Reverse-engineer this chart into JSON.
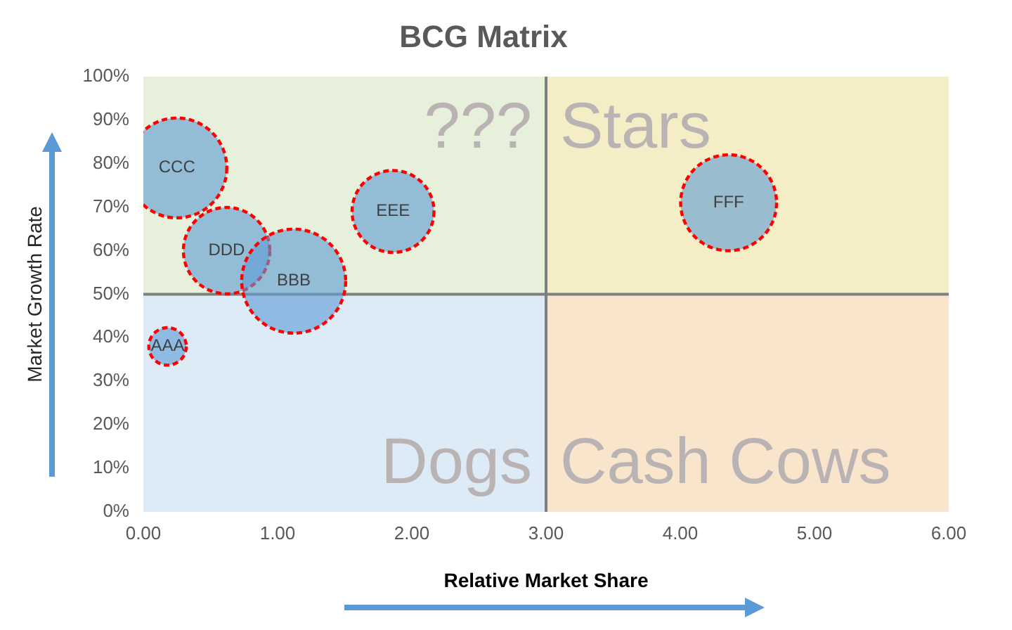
{
  "chart_data": {
    "type": "bubble",
    "title": "BCG Matrix",
    "xlabel": "Relative Market Share",
    "ylabel": "Market Growth Rate",
    "series": [
      {
        "name": "AAA",
        "color": "#5b9bd5",
        "x": [
          0.18
        ],
        "values": [
          38
        ],
        "sizes": [
          0.13
        ]
      },
      {
        "name": "BBB",
        "color": "#5b9bd5",
        "x": [
          1.12
        ],
        "values": [
          53
        ],
        "sizes": [
          1
        ]
      },
      {
        "name": "CCC",
        "color": "#5b9bd5",
        "x": [
          0.25
        ],
        "values": [
          79
        ],
        "sizes": [
          0.92
        ]
      },
      {
        "name": "DDD",
        "color": "#5b9bd5",
        "x": [
          0.62
        ],
        "values": [
          60
        ],
        "sizes": [
          0.69
        ]
      },
      {
        "name": "EEE",
        "color": "#5b9bd5",
        "x": [
          1.86
        ],
        "values": [
          69
        ],
        "sizes": [
          0.62
        ]
      },
      {
        "name": "FFF",
        "color": "#5b9bd5",
        "x": [
          4.36
        ],
        "values": [
          71
        ],
        "sizes": [
          0.85
        ]
      }
    ],
    "xlim": [
      0,
      6
    ],
    "xticks": [
      {
        "value": 0,
        "label": "0.00"
      },
      {
        "value": 1,
        "label": "1.00"
      },
      {
        "value": 2,
        "label": "2.00"
      },
      {
        "value": 3,
        "label": "3.00"
      },
      {
        "value": 4,
        "label": "4.00"
      },
      {
        "value": 5,
        "label": "5.00"
      },
      {
        "value": 6,
        "label": "6.00"
      }
    ],
    "ylim": [
      0,
      100
    ],
    "yticks": [
      {
        "value": 0,
        "label": "0%"
      },
      {
        "value": 10,
        "label": "10%"
      },
      {
        "value": 20,
        "label": "20%"
      },
      {
        "value": 30,
        "label": "30%"
      },
      {
        "value": 40,
        "label": "40%"
      },
      {
        "value": 50,
        "label": "50%"
      },
      {
        "value": 60,
        "label": "60%"
      },
      {
        "value": 70,
        "label": "70%"
      },
      {
        "value": 80,
        "label": "80%"
      },
      {
        "value": 90,
        "label": "90%"
      },
      {
        "value": 100,
        "label": "100%"
      }
    ],
    "ref_lines": [
      {
        "axis": "x",
        "value": 3,
        "color": "#7f7f7f"
      },
      {
        "axis": "y",
        "value": 50,
        "color": "#7f7f7f"
      }
    ],
    "bands": [
      {
        "axis": "x",
        "from": 0,
        "to": 3,
        "color": "#ddebf7"
      },
      {
        "axis": "x",
        "from": 3,
        "to": 6,
        "color": "#f8e5cc"
      },
      {
        "axis": "y",
        "from": 50,
        "to": 100,
        "color": "#f0f6be"
      }
    ],
    "annotations": [
      "???",
      "Stars",
      "Dogs",
      "Cash Cows"
    ]
  }
}
